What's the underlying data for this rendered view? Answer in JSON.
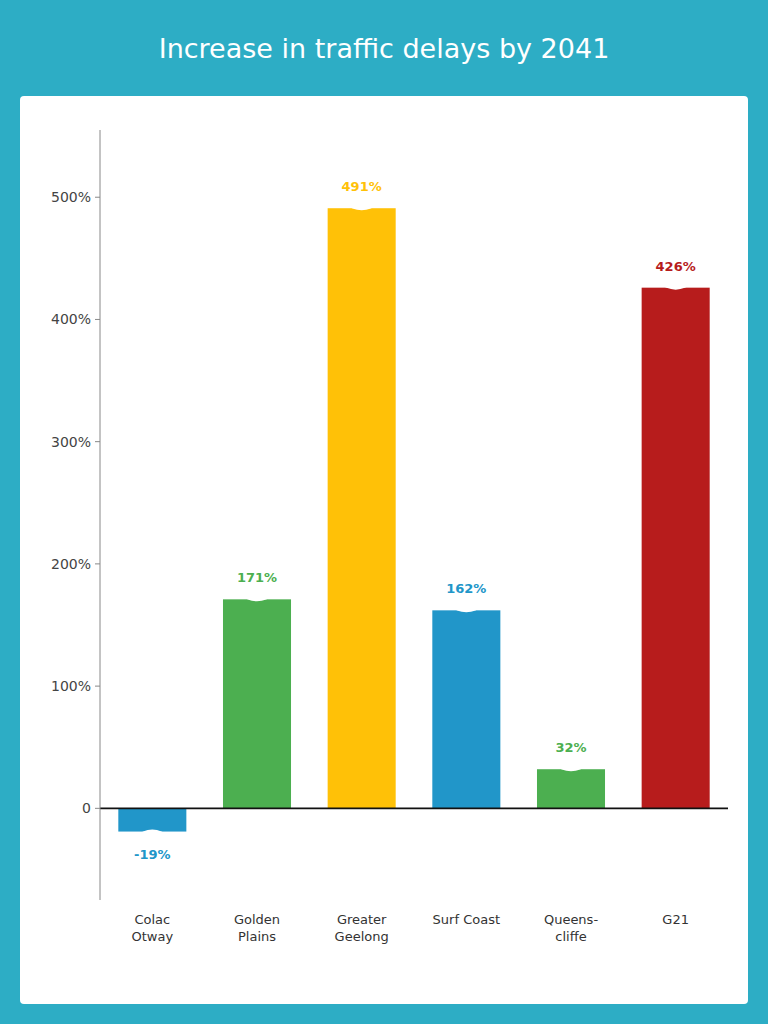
{
  "chart_data": {
    "type": "bar",
    "title": "Increase in traffic delays by 2041",
    "categories": [
      "Colac\nOtway",
      "Golden\nPlains",
      "Greater\nGeelong",
      "Surf Coast",
      "Queens-\ncliffe",
      "G21"
    ],
    "values": [
      -19,
      171,
      491,
      162,
      32,
      426
    ],
    "value_labels": [
      "-19%",
      "171%",
      "491%",
      "162%",
      "32%",
      "426%"
    ],
    "data_labels": true,
    "colors": [
      "#2196C9",
      "#4CAF50",
      "#FFC107",
      "#2196C9",
      "#4CAF50",
      "#B71C1C"
    ],
    "ylim": [
      -75,
      555
    ],
    "yticks": [
      0,
      {
        "value": 100,
        "label": "100%"
      },
      {
        "value": 200,
        "label": "200%"
      },
      {
        "value": 300,
        "label": "300%"
      },
      {
        "value": 400,
        "label": "400%"
      },
      {
        "value": 500,
        "label": "500%"
      }
    ],
    "grid": false
  }
}
